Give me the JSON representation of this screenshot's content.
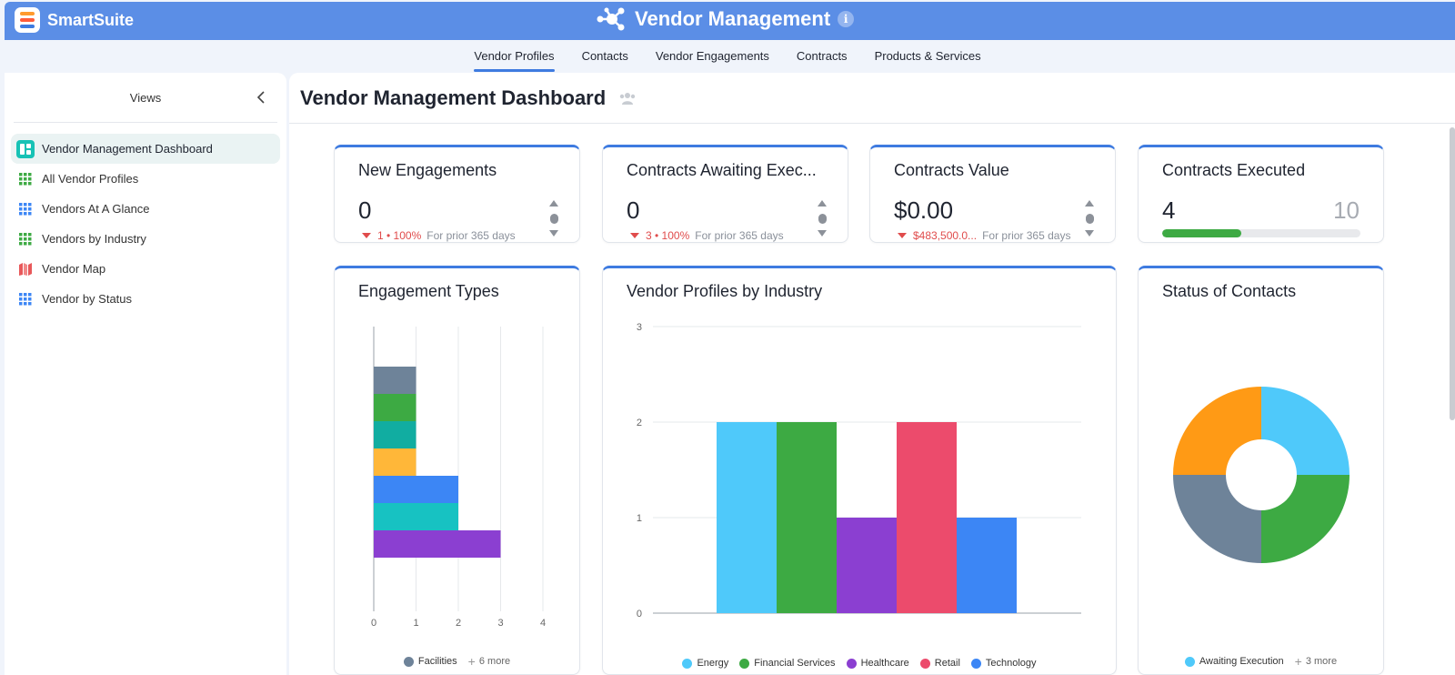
{
  "app": {
    "logo_text": "SmartSuite",
    "title": "Vendor Management",
    "info_glyph": "i",
    "logo_colors": [
      "#ff9a2e",
      "#ff5c3a",
      "#3e7be0"
    ]
  },
  "tabs": [
    {
      "label": "Vendor Profiles",
      "active": true
    },
    {
      "label": "Contacts",
      "active": false
    },
    {
      "label": "Vendor Engagements",
      "active": false
    },
    {
      "label": "Contracts",
      "active": false
    },
    {
      "label": "Products & Services",
      "active": false
    }
  ],
  "sidebar": {
    "header": "Views",
    "items": [
      {
        "label": "Vendor Management Dashboard",
        "icon": "dashboard-icon",
        "active": true
      },
      {
        "label": "All Vendor Profiles",
        "icon": "grid-icon"
      },
      {
        "label": "Vendors At A Glance",
        "icon": "grid-icon"
      },
      {
        "label": "Vendors by Industry",
        "icon": "grid-icon"
      },
      {
        "label": "Vendor Map",
        "icon": "map-icon"
      },
      {
        "label": "Vendor by Status",
        "icon": "grid-icon"
      }
    ]
  },
  "dashboard": {
    "title": "Vendor Management Dashboard",
    "metrics": [
      {
        "title": "New Engagements",
        "value": "0",
        "change": "1 • 100%",
        "period": "For prior 365 days"
      },
      {
        "title": "Contracts Awaiting Exec...",
        "value": "0",
        "change": "3 • 100%",
        "period": "For prior 365 days"
      },
      {
        "title": "Contracts Value",
        "value": "$0.00",
        "change": "$483,500.0...",
        "period": "For prior 365 days"
      }
    ],
    "progress": {
      "title": "Contracts Executed",
      "value": "4",
      "max": "10",
      "fraction": 0.4
    }
  },
  "chart_data": [
    {
      "type": "bar",
      "orientation": "horizontal-stacked",
      "title": "Engagement Types",
      "xlim": [
        0,
        4
      ],
      "x_ticks": [
        "0",
        "1",
        "2",
        "3",
        "4"
      ],
      "bars": [
        {
          "segments": [
            1
          ],
          "color": "#6e8399"
        },
        {
          "segments": [
            1
          ],
          "color": "#3daa43"
        },
        {
          "segments": [
            1
          ],
          "color": "#11ada1"
        },
        {
          "segments": [
            1
          ],
          "color": "#ffb739"
        },
        {
          "segments": [
            2
          ],
          "color": "#3c86f5"
        },
        {
          "segments": [
            2
          ],
          "color": "#17c2c2"
        },
        {
          "segments": [
            3
          ],
          "color": "#8b3fd1"
        }
      ],
      "legend": [
        {
          "label": "Facilities",
          "color": "#6e8399"
        }
      ],
      "legend_more": "6 more"
    },
    {
      "type": "bar",
      "title": "Vendor Profiles by Industry",
      "categories": [
        "Energy",
        "Financial Services",
        "Healthcare",
        "Retail",
        "Technology"
      ],
      "values": [
        2,
        2,
        1,
        2,
        1
      ],
      "colors": [
        "#4fc9fa",
        "#3daa43",
        "#8b3fd1",
        "#ec4b6c",
        "#3c86f5"
      ],
      "ylim": [
        0,
        3
      ],
      "y_ticks": [
        "0",
        "1",
        "2",
        "3"
      ]
    },
    {
      "type": "pie",
      "title": "Status of Contacts",
      "values": [
        1,
        1,
        1,
        1
      ],
      "colors": [
        "#4fc9fa",
        "#3daa43",
        "#6e8399",
        "#ff9a15"
      ],
      "legend": [
        {
          "label": "Awaiting Execution",
          "color": "#4fc9fa"
        }
      ],
      "legend_more": "3 more"
    }
  ]
}
